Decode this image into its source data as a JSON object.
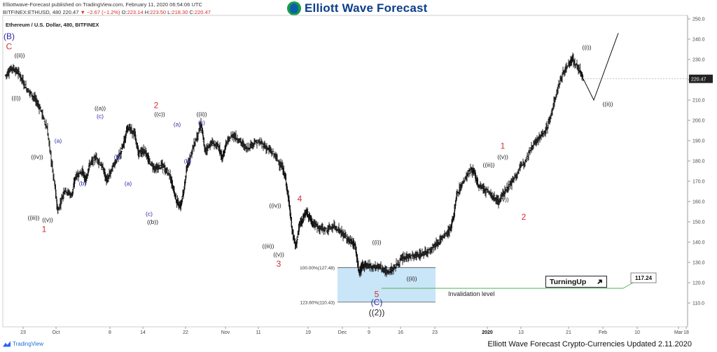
{
  "header": {
    "line1": "Elliottwave-Forecast published on TradingView.com, February 11, 2020 06:54:06 UTC",
    "symbol_interval": "BITFINEX:ETHUSD, 480",
    "last_price": "220.47",
    "change": "▼ −2.67 (−1.2%)",
    "o_label": "O:",
    "o_value": "223.14",
    "h_label": "H:",
    "h_value": "223.50",
    "l_label": "L:",
    "l_value": "218.30",
    "c_label": "C:",
    "c_value": "220.47"
  },
  "logo": {
    "text": "Elliott Wave Forecast",
    "icon": "elliott-wave-logo-icon"
  },
  "chart_title": "Ethereum / U.S. Dollar, 480, BITFINEX",
  "footer": {
    "tradingview": "TradingView",
    "note": "Elliott Wave Forecast Crypto-Currencies Updated 2.11.2020"
  },
  "turning_up": {
    "label": "TurningUp",
    "icon": "arrow-up-right-icon"
  },
  "colors": {
    "wave_red": "#d32f2f",
    "wave_blue": "#2a2aa8",
    "zone": "#bfe0f7",
    "invalidation": "#4caf50",
    "price_tag": "#222222"
  },
  "chart_data": {
    "type": "ohlc",
    "ylim": [
      100,
      250
    ],
    "y_ticks": [
      110,
      120,
      130,
      140,
      150,
      160,
      170,
      180,
      190,
      200,
      210,
      220,
      230,
      240,
      250
    ],
    "x_ticks": [
      "23",
      "Oct",
      "8",
      "14",
      "22",
      "Nov",
      "11",
      "19",
      "Dec",
      "9",
      "16",
      "23",
      "2020",
      "13",
      "21",
      "Feb",
      "10",
      "18",
      "Mar"
    ],
    "last_price": 220.47,
    "invalidation_price": 117.24,
    "invalidation_label": "Invalidation level",
    "fib_levels": [
      {
        "label": "100.00%(127.48)",
        "value": 127.48
      },
      {
        "label": "123.60%(110.43)",
        "value": 110.43
      }
    ],
    "path_points": [
      [
        0,
        222
      ],
      [
        2,
        226
      ],
      [
        4,
        223
      ],
      [
        6,
        216
      ],
      [
        8,
        212
      ],
      [
        10,
        206
      ],
      [
        12,
        196
      ],
      [
        14,
        170
      ],
      [
        15,
        155
      ],
      [
        17,
        166
      ],
      [
        19,
        163
      ],
      [
        20,
        172
      ],
      [
        22,
        175
      ],
      [
        23,
        170
      ],
      [
        24,
        178
      ],
      [
        26,
        182
      ],
      [
        28,
        176
      ],
      [
        29,
        170
      ],
      [
        31,
        178
      ],
      [
        33,
        184
      ],
      [
        34,
        190
      ],
      [
        35,
        197
      ],
      [
        37,
        193
      ],
      [
        38,
        184
      ],
      [
        40,
        185
      ],
      [
        41,
        180
      ],
      [
        43,
        176
      ],
      [
        45,
        178
      ],
      [
        47,
        173
      ],
      [
        48,
        166
      ],
      [
        49,
        160
      ],
      [
        50,
        158
      ],
      [
        51,
        165
      ],
      [
        52,
        178
      ],
      [
        54,
        188
      ],
      [
        56,
        198
      ],
      [
        57,
        185
      ],
      [
        59,
        189
      ],
      [
        61,
        187
      ],
      [
        62,
        181
      ],
      [
        63,
        188
      ],
      [
        65,
        193
      ],
      [
        67,
        190
      ],
      [
        69,
        186
      ],
      [
        71,
        189
      ],
      [
        73,
        189
      ],
      [
        75,
        186
      ],
      [
        77,
        183
      ],
      [
        79,
        177
      ],
      [
        80,
        172
      ],
      [
        81,
        160
      ],
      [
        82,
        145
      ],
      [
        83,
        138
      ],
      [
        84,
        148
      ],
      [
        85,
        152
      ],
      [
        86,
        155
      ],
      [
        87,
        152
      ],
      [
        88,
        149
      ],
      [
        90,
        147
      ],
      [
        92,
        146
      ],
      [
        94,
        148
      ],
      [
        96,
        145
      ],
      [
        98,
        141
      ],
      [
        99,
        140
      ],
      [
        100,
        138
      ],
      [
        101,
        125
      ],
      [
        102,
        128
      ],
      [
        103,
        129
      ],
      [
        105,
        128
      ],
      [
        107,
        128
      ],
      [
        109,
        125
      ],
      [
        111,
        127
      ],
      [
        113,
        131
      ],
      [
        115,
        133
      ],
      [
        117,
        133
      ],
      [
        119,
        134
      ],
      [
        121,
        136
      ],
      [
        123,
        139
      ],
      [
        125,
        142
      ],
      [
        127,
        146
      ],
      [
        128,
        152
      ],
      [
        129,
        164
      ],
      [
        131,
        170
      ],
      [
        133,
        176
      ],
      [
        134,
        174
      ],
      [
        135,
        168
      ],
      [
        137,
        166
      ],
      [
        139,
        163
      ],
      [
        141,
        160
      ],
      [
        143,
        166
      ],
      [
        145,
        170
      ],
      [
        147,
        176
      ],
      [
        149,
        182
      ],
      [
        151,
        189
      ],
      [
        153,
        192
      ],
      [
        155,
        197
      ],
      [
        157,
        210
      ],
      [
        159,
        222
      ],
      [
        161,
        228
      ],
      [
        162,
        230
      ],
      [
        164,
        225
      ],
      [
        165,
        220.47
      ]
    ],
    "projection": [
      [
        165,
        220.47
      ],
      [
        168,
        210
      ],
      [
        175,
        243
      ]
    ],
    "wave_labels": [
      {
        "text": "(B)",
        "x": 1,
        "y": 240,
        "color": "blue"
      },
      {
        "text": "C",
        "x": 1,
        "y": 235,
        "color": "red"
      },
      {
        "text": "((ii))",
        "x": 4,
        "y": 231,
        "color": "dark"
      },
      {
        "text": "((i))",
        "x": 3,
        "y": 210,
        "color": "dark"
      },
      {
        "text": "((iii))",
        "x": 8,
        "y": 151,
        "color": "dark"
      },
      {
        "text": "((iv))",
        "x": 9,
        "y": 181,
        "color": "dark"
      },
      {
        "text": "((v))",
        "x": 12,
        "y": 150,
        "color": "dark"
      },
      {
        "text": "1",
        "x": 11,
        "y": 145,
        "color": "red"
      },
      {
        "text": "(a)",
        "x": 15,
        "y": 189,
        "color": "blue"
      },
      {
        "text": "(b)",
        "x": 22,
        "y": 168,
        "color": "blue"
      },
      {
        "text": "((a))",
        "x": 27,
        "y": 205,
        "color": "dark"
      },
      {
        "text": "(c)",
        "x": 27,
        "y": 201,
        "color": "blue"
      },
      {
        "text": "(b)",
        "x": 32,
        "y": 181,
        "color": "blue"
      },
      {
        "text": "(a)",
        "x": 35,
        "y": 168,
        "color": "blue"
      },
      {
        "text": "(c)",
        "x": 41,
        "y": 153,
        "color": "blue"
      },
      {
        "text": "((b))",
        "x": 42,
        "y": 149,
        "color": "dark"
      },
      {
        "text": "2",
        "x": 43,
        "y": 206,
        "color": "red"
      },
      {
        "text": "((c))",
        "x": 44,
        "y": 202,
        "color": "dark"
      },
      {
        "text": "((i))",
        "x": 46,
        "y": 174,
        "color": "dark"
      },
      {
        "text": "(a)",
        "x": 49,
        "y": 197,
        "color": "blue"
      },
      {
        "text": "(b)",
        "x": 52,
        "y": 179,
        "color": "blue"
      },
      {
        "text": "((ii))",
        "x": 56,
        "y": 202,
        "color": "dark"
      },
      {
        "text": "(c)",
        "x": 56,
        "y": 198,
        "color": "blue"
      },
      {
        "text": "4",
        "x": 84,
        "y": 160,
        "color": "red"
      },
      {
        "text": "((iv))",
        "x": 77,
        "y": 157,
        "color": "dark"
      },
      {
        "text": "((iii))",
        "x": 75,
        "y": 137,
        "color": "dark"
      },
      {
        "text": "((v))",
        "x": 78,
        "y": 133,
        "color": "dark"
      },
      {
        "text": "3",
        "x": 78,
        "y": 128,
        "color": "red"
      },
      {
        "text": "((i))",
        "x": 106,
        "y": 139,
        "color": "dark"
      },
      {
        "text": "5",
        "x": 106,
        "y": 113,
        "color": "red"
      },
      {
        "text": "(C)",
        "x": 106,
        "y": 109,
        "color": "blue"
      },
      {
        "text": "((2))",
        "x": 106,
        "y": 104,
        "color": "dark"
      },
      {
        "text": "((ii))",
        "x": 116,
        "y": 121,
        "color": "dark"
      },
      {
        "text": "1",
        "x": 142,
        "y": 186,
        "color": "red"
      },
      {
        "text": "((v))",
        "x": 142,
        "y": 181,
        "color": "dark"
      },
      {
        "text": "((iii))",
        "x": 138,
        "y": 177,
        "color": "dark"
      },
      {
        "text": "((iv))",
        "x": 142,
        "y": 160,
        "color": "dark"
      },
      {
        "text": "2",
        "x": 148,
        "y": 151,
        "color": "red"
      },
      {
        "text": "((i))",
        "x": 166,
        "y": 235,
        "color": "dark"
      },
      {
        "text": "((ii))",
        "x": 172,
        "y": 207,
        "color": "dark"
      }
    ]
  }
}
